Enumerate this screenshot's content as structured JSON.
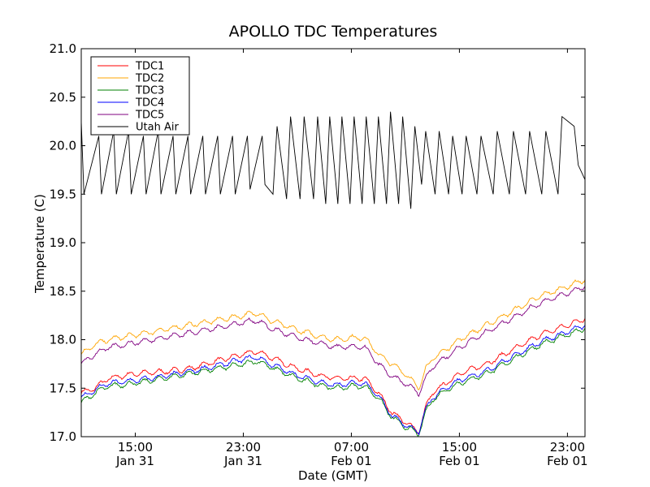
{
  "chart_data": {
    "type": "line",
    "title": "APOLLO TDC Temperatures",
    "xlabel": "Date (GMT)",
    "ylabel": "Temperature (C)",
    "x_unit": "hours since Jan 31 11:00 GMT",
    "xlim": [
      0,
      37.3
    ],
    "ylim": [
      17.0,
      21.0
    ],
    "grid": false,
    "legend_position": "top-left",
    "y_ticks": [
      {
        "value": 17.0,
        "label": "17.0"
      },
      {
        "value": 17.5,
        "label": "17.5"
      },
      {
        "value": 18.0,
        "label": "18.0"
      },
      {
        "value": 18.5,
        "label": "18.5"
      },
      {
        "value": 19.0,
        "label": "19.0"
      },
      {
        "value": 19.5,
        "label": "19.5"
      },
      {
        "value": 20.0,
        "label": "20.0"
      },
      {
        "value": 20.5,
        "label": "20.5"
      },
      {
        "value": 21.0,
        "label": "21.0"
      }
    ],
    "x_ticks": [
      {
        "value": 4,
        "time": "15:00",
        "date": "Jan 31"
      },
      {
        "value": 12,
        "time": "23:00",
        "date": "Jan 31"
      },
      {
        "value": 20,
        "time": "07:00",
        "date": "Feb 01"
      },
      {
        "value": 28,
        "time": "15:00",
        "date": "Feb 01"
      },
      {
        "value": 36,
        "time": "23:00",
        "date": "Feb 01"
      }
    ],
    "series": [
      {
        "name": "TDC1",
        "color": "#ff0000",
        "x": [
          0,
          1,
          2,
          4,
          6,
          8,
          10,
          12,
          13,
          14,
          16,
          18,
          19,
          20,
          21,
          22,
          23,
          24,
          25,
          25.5,
          26,
          27,
          28,
          30,
          32,
          34,
          36,
          37.3
        ],
        "y": [
          17.45,
          17.5,
          17.6,
          17.65,
          17.67,
          17.7,
          17.78,
          17.85,
          17.88,
          17.82,
          17.7,
          17.62,
          17.6,
          17.6,
          17.6,
          17.45,
          17.25,
          17.15,
          17.05,
          17.3,
          17.45,
          17.55,
          17.65,
          17.75,
          17.9,
          18.05,
          18.15,
          18.22
        ]
      },
      {
        "name": "TDC2",
        "color": "#ffa500",
        "x": [
          0,
          1,
          2,
          4,
          6,
          8,
          10,
          12,
          13,
          14,
          16,
          18,
          19,
          20,
          21,
          22,
          23,
          24,
          25,
          25.5,
          26,
          27,
          28,
          30,
          32,
          34,
          36,
          37.3
        ],
        "y": [
          17.85,
          17.95,
          18.0,
          18.05,
          18.1,
          18.15,
          18.2,
          18.25,
          18.28,
          18.2,
          18.1,
          18.02,
          18.0,
          18.02,
          18.02,
          17.85,
          17.75,
          17.65,
          17.5,
          17.7,
          17.8,
          17.9,
          18.0,
          18.15,
          18.3,
          18.45,
          18.55,
          18.62
        ]
      },
      {
        "name": "TDC3",
        "color": "#008000",
        "x": [
          0,
          1,
          2,
          4,
          6,
          8,
          10,
          12,
          13,
          14,
          16,
          18,
          19,
          20,
          21,
          22,
          23,
          24,
          25,
          25.5,
          26,
          27,
          28,
          30,
          32,
          34,
          36,
          37.3
        ],
        "y": [
          17.35,
          17.45,
          17.52,
          17.55,
          17.6,
          17.65,
          17.7,
          17.75,
          17.78,
          17.72,
          17.6,
          17.52,
          17.5,
          17.52,
          17.52,
          17.4,
          17.2,
          17.1,
          17.03,
          17.25,
          17.38,
          17.48,
          17.55,
          17.65,
          17.8,
          17.95,
          18.05,
          18.12
        ]
      },
      {
        "name": "TDC4",
        "color": "#0000ff",
        "x": [
          0,
          1,
          2,
          4,
          6,
          8,
          10,
          12,
          13,
          14,
          16,
          18,
          19,
          20,
          21,
          22,
          23,
          24,
          25,
          25.5,
          26,
          27,
          28,
          30,
          32,
          34,
          36,
          37.3
        ],
        "y": [
          17.4,
          17.48,
          17.55,
          17.58,
          17.62,
          17.67,
          17.73,
          17.8,
          17.82,
          17.75,
          17.63,
          17.55,
          17.53,
          17.55,
          17.55,
          17.42,
          17.22,
          17.12,
          17.05,
          17.28,
          17.4,
          17.5,
          17.58,
          17.68,
          17.83,
          17.98,
          18.08,
          18.15
        ]
      },
      {
        "name": "TDC5",
        "color": "#800080",
        "x": [
          0,
          1,
          2,
          4,
          6,
          8,
          10,
          12,
          13,
          14,
          16,
          18,
          19,
          20,
          21,
          22,
          23,
          24,
          25,
          25.5,
          26,
          27,
          28,
          30,
          32,
          34,
          36,
          37.3
        ],
        "y": [
          17.75,
          17.85,
          17.92,
          17.97,
          18.02,
          18.07,
          18.12,
          18.18,
          18.2,
          18.12,
          18.02,
          17.95,
          17.92,
          17.93,
          17.92,
          17.75,
          17.62,
          17.55,
          17.45,
          17.6,
          17.72,
          17.82,
          17.92,
          18.08,
          18.23,
          18.38,
          18.48,
          18.55
        ]
      },
      {
        "name": "Utah Air",
        "color": "#000000",
        "sawtooth": true,
        "x": [
          0,
          0.2,
          1.3,
          1.5,
          2.4,
          2.6,
          3.5,
          3.7,
          4.6,
          4.8,
          5.7,
          5.9,
          6.8,
          7.0,
          7.9,
          8.1,
          9.0,
          9.2,
          10.1,
          10.3,
          11.2,
          11.4,
          12.3,
          12.5,
          13.4,
          13.6,
          14.2,
          14.5,
          15.2,
          15.5,
          16.2,
          16.5,
          17.2,
          17.5,
          18.1,
          18.4,
          19.0,
          19.3,
          19.9,
          20.2,
          20.8,
          21.1,
          21.7,
          22.0,
          22.6,
          22.9,
          23.5,
          23.8,
          24.4,
          24.7,
          25.2,
          25.5,
          26.2,
          26.5,
          27.2,
          27.5,
          28.2,
          28.5,
          29.3,
          29.6,
          30.5,
          30.8,
          31.7,
          32.0,
          32.9,
          33.2,
          34.1,
          34.4,
          35.3,
          35.6,
          36.5,
          36.8,
          37.3
        ],
        "y": [
          20.25,
          19.5,
          20.1,
          19.5,
          20.15,
          19.5,
          20.15,
          19.5,
          20.1,
          19.5,
          20.15,
          19.5,
          20.1,
          19.5,
          20.1,
          19.5,
          20.1,
          19.5,
          20.1,
          19.5,
          20.1,
          19.5,
          20.1,
          19.55,
          20.1,
          19.6,
          19.5,
          20.2,
          19.45,
          20.3,
          19.45,
          20.3,
          19.45,
          20.3,
          19.4,
          20.3,
          19.4,
          20.3,
          19.4,
          20.3,
          19.4,
          20.3,
          19.4,
          20.3,
          19.4,
          20.35,
          19.4,
          20.3,
          19.35,
          20.2,
          19.6,
          20.15,
          19.5,
          20.15,
          19.5,
          20.1,
          19.5,
          20.1,
          19.5,
          20.1,
          19.5,
          20.15,
          19.5,
          20.15,
          19.5,
          20.15,
          19.5,
          20.15,
          19.5,
          20.3,
          20.2,
          19.8,
          19.65
        ]
      }
    ]
  }
}
